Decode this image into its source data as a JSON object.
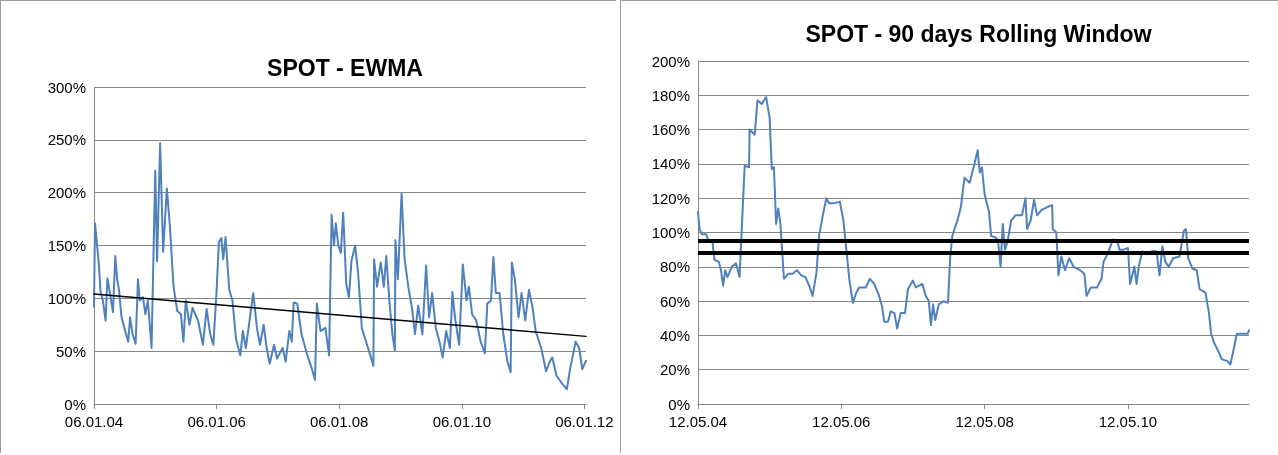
{
  "chart_data": [
    {
      "type": "line",
      "title": "SPOT - EWMA",
      "grid": "y",
      "xlim": [
        "2004-01-06",
        "2012-01-16"
      ],
      "xticks": [
        {
          "value": "2004-01-06",
          "label": "06.01.04"
        },
        {
          "value": "2006-01-06",
          "label": "06.01.06"
        },
        {
          "value": "2008-01-06",
          "label": "06.01.08"
        },
        {
          "value": "2010-01-06",
          "label": "06.01.10"
        },
        {
          "value": "2012-01-06",
          "label": "06.01.12"
        }
      ],
      "ylim": [
        0,
        300
      ],
      "yticks": [
        {
          "value": 0,
          "label": "0%"
        },
        {
          "value": 50,
          "label": "50%"
        },
        {
          "value": 100,
          "label": "100%"
        },
        {
          "value": 150,
          "label": "150%"
        },
        {
          "value": 200,
          "label": "200%"
        },
        {
          "value": 250,
          "label": "250%"
        },
        {
          "value": 300,
          "label": "300%"
        }
      ],
      "series": [
        {
          "color": "#4f81bd",
          "x": [
            "2004-01-06",
            "2004-01-12",
            "2004-02-03",
            "2004-02-14",
            "2004-02-28",
            "2004-03-15",
            "2004-03-26",
            "2004-04-10",
            "2004-04-28",
            "2004-05-12",
            "2004-05-23",
            "2004-06-03",
            "2004-06-18",
            "2004-07-10",
            "2004-07-28",
            "2004-08-08",
            "2004-08-23",
            "2004-09-10",
            "2004-09-24",
            "2004-10-05",
            "2004-10-24",
            "2004-11-07",
            "2004-11-22",
            "2004-12-14",
            "2004-12-25",
            "2005-01-05",
            "2005-01-16",
            "2005-02-03",
            "2005-02-21",
            "2005-03-15",
            "2005-04-02",
            "2005-04-24",
            "2005-05-16",
            "2005-06-07",
            "2005-06-22",
            "2005-07-06",
            "2005-07-28",
            "2005-08-15",
            "2005-09-17",
            "2005-10-16",
            "2005-11-07",
            "2005-11-29",
            "2005-12-17",
            "2006-01-05",
            "2006-01-19",
            "2006-02-03",
            "2006-02-14",
            "2006-02-28",
            "2006-03-22",
            "2006-04-10",
            "2006-05-01",
            "2006-05-27",
            "2006-06-11",
            "2006-06-29",
            "2006-07-21",
            "2006-08-12",
            "2006-09-03",
            "2006-09-21",
            "2006-10-13",
            "2006-10-31",
            "2006-11-18",
            "2006-12-14",
            "2007-01-01",
            "2007-02-03",
            "2007-02-21",
            "2007-03-15",
            "2007-03-30",
            "2007-04-10",
            "2007-05-01",
            "2007-05-27",
            "2007-06-25",
            "2007-07-28",
            "2007-08-15",
            "2007-08-26",
            "2007-09-17",
            "2007-10-16",
            "2007-11-07",
            "2007-11-22",
            "2007-12-06",
            "2007-12-17",
            "2008-01-01",
            "2008-01-16",
            "2008-01-30",
            "2008-02-17",
            "2008-03-04",
            "2008-03-19",
            "2008-04-10",
            "2008-04-28",
            "2008-05-20",
            "2008-06-14",
            "2008-07-10",
            "2008-07-28",
            "2008-08-01",
            "2008-08-19",
            "2008-09-10",
            "2008-09-28",
            "2008-10-13",
            "2008-10-31",
            "2008-11-18",
            "2008-12-03",
            "2008-12-06",
            "2008-12-21",
            "2009-01-12",
            "2009-01-30",
            "2009-02-21",
            "2009-03-15",
            "2009-04-02",
            "2009-04-21",
            "2009-05-16",
            "2009-06-07",
            "2009-06-25",
            "2009-07-13",
            "2009-08-04",
            "2009-08-26",
            "2009-09-14",
            "2009-10-05",
            "2009-10-27",
            "2009-11-11",
            "2009-11-26",
            "2009-12-21",
            "2010-01-12",
            "2010-02-03",
            "2010-02-17",
            "2010-03-08",
            "2010-04-02",
            "2010-04-28",
            "2010-05-23",
            "2010-06-07",
            "2010-06-29",
            "2010-07-13",
            "2010-07-28",
            "2010-08-19",
            "2010-09-10",
            "2010-10-05",
            "2010-10-24",
            "2010-10-31",
            "2010-11-18",
            "2010-12-10",
            "2010-12-28",
            "2011-01-19",
            "2011-02-10",
            "2011-03-04",
            "2011-03-22",
            "2011-04-24",
            "2011-05-23",
            "2011-06-14",
            "2011-06-29",
            "2011-07-24",
            "2011-08-23",
            "2011-09-24",
            "2011-10-13",
            "2011-11-15",
            "2011-12-06",
            "2011-12-25",
            "2012-01-16"
          ],
          "values": [
            92,
            171,
            134,
            106,
            98,
            79,
            119,
            105,
            87,
            140,
            118,
            108,
            82,
            69,
            59,
            82,
            66,
            57,
            118,
            98,
            101,
            85,
            98,
            53,
            137,
            221,
            135,
            247,
            144,
            204,
            169,
            111,
            88,
            85,
            59,
            98,
            75,
            91,
            79,
            56,
            90,
            66,
            56,
            105,
            153,
            157,
            137,
            158,
            108,
            98,
            62,
            46,
            69,
            53,
            79,
            105,
            72,
            56,
            75,
            53,
            38,
            56,
            43,
            53,
            40,
            69,
            59,
            96,
            95,
            66,
            49,
            33,
            23,
            95,
            69,
            72,
            46,
            179,
            150,
            171,
            150,
            143,
            181,
            114,
            101,
            135,
            150,
            124,
            72,
            59,
            46,
            36,
            137,
            111,
            134,
            111,
            140,
            98,
            66,
            51,
            155,
            118,
            199,
            137,
            111,
            91,
            66,
            93,
            66,
            131,
            82,
            105,
            72,
            59,
            44,
            69,
            53,
            106,
            82,
            56,
            132,
            98,
            111,
            85,
            79,
            59,
            48,
            95,
            98,
            139,
            105,
            105,
            66,
            40,
            30,
            134,
            118,
            82,
            105,
            79,
            108,
            91,
            69,
            53,
            31,
            40,
            44,
            27,
            20,
            14,
            33,
            59,
            53,
            33,
            41
          ]
        },
        {
          "color": "#000000",
          "x": [
            "2004-01-06",
            "2012-01-16"
          ],
          "values": [
            104,
            64
          ]
        }
      ]
    },
    {
      "type": "line",
      "title": "SPOT - 90 days Rolling Window",
      "grid": "y",
      "xlim": [
        "2004-05-12",
        "2012-01-19"
      ],
      "xticks": [
        {
          "value": "2004-05-12",
          "label": "12.05.04"
        },
        {
          "value": "2006-05-12",
          "label": "12.05.06"
        },
        {
          "value": "2008-05-12",
          "label": "12.05.08"
        },
        {
          "value": "2010-05-12",
          "label": "12.05.10"
        }
      ],
      "ylim": [
        0,
        200
      ],
      "yticks": [
        {
          "value": 0,
          "label": "0%"
        },
        {
          "value": 20,
          "label": "20%"
        },
        {
          "value": 40,
          "label": "40%"
        },
        {
          "value": 60,
          "label": "60%"
        },
        {
          "value": 80,
          "label": "80%"
        },
        {
          "value": 100,
          "label": "100%"
        },
        {
          "value": 120,
          "label": "120%"
        },
        {
          "value": 140,
          "label": "140%"
        },
        {
          "value": 160,
          "label": "160%"
        },
        {
          "value": 180,
          "label": "180%"
        },
        {
          "value": 200,
          "label": "200%"
        }
      ],
      "ref_lines": [
        {
          "axis": "y",
          "value": 95,
          "color": "#000000"
        },
        {
          "axis": "y",
          "value": 88,
          "color": "#000000"
        }
      ],
      "series": [
        {
          "color": "#4f81bd",
          "x": [
            "2004-05-12",
            "2004-05-20",
            "2004-05-31",
            "2004-06-22",
            "2004-07-03",
            "2004-07-24",
            "2004-08-04",
            "2004-08-26",
            "2004-09-06",
            "2004-09-17",
            "2004-09-28",
            "2004-10-09",
            "2004-10-31",
            "2004-11-22",
            "2004-12-10",
            "2004-12-25",
            "2005-01-05",
            "2005-01-27",
            "2005-01-30",
            "2005-02-25",
            "2005-03-11",
            "2005-04-02",
            "2005-04-24",
            "2005-05-12",
            "2005-05-23",
            "2005-06-03",
            "2005-06-14",
            "2005-06-25",
            "2005-07-06",
            "2005-07-24",
            "2005-08-15",
            "2005-09-06",
            "2005-09-28",
            "2005-10-20",
            "2005-11-11",
            "2005-12-03",
            "2005-12-17",
            "2006-01-05",
            "2006-01-19",
            "2006-02-07",
            "2006-02-25",
            "2006-03-11",
            "2006-04-02",
            "2006-05-05",
            "2006-05-23",
            "2006-06-07",
            "2006-06-22",
            "2006-07-10",
            "2006-07-28",
            "2006-08-12",
            "2006-09-14",
            "2006-10-05",
            "2006-10-27",
            "2006-11-18",
            "2006-12-06",
            "2006-12-17",
            "2007-01-05",
            "2007-01-19",
            "2007-02-07",
            "2007-02-21",
            "2007-03-11",
            "2007-04-02",
            "2007-04-17",
            "2007-05-12",
            "2007-05-27",
            "2007-06-29",
            "2007-07-17",
            "2007-08-01",
            "2007-08-12",
            "2007-08-23",
            "2007-09-03",
            "2007-09-21",
            "2007-10-16",
            "2007-11-07",
            "2007-11-18",
            "2007-11-29",
            "2007-12-10",
            "2007-12-25",
            "2008-01-12",
            "2008-01-30",
            "2008-02-25",
            "2008-03-19",
            "2008-04-06",
            "2008-04-17",
            "2008-04-28",
            "2008-05-12",
            "2008-06-03",
            "2008-06-14",
            "2008-07-10",
            "2008-07-21",
            "2008-08-01",
            "2008-08-12",
            "2008-08-23",
            "2008-09-06",
            "2008-09-24",
            "2008-10-16",
            "2008-11-18",
            "2008-12-06",
            "2008-12-14",
            "2009-01-01",
            "2009-01-19",
            "2009-02-03",
            "2009-02-25",
            "2009-03-30",
            "2009-04-21",
            "2009-04-24",
            "2009-05-12",
            "2009-05-23",
            "2009-06-07",
            "2009-06-25",
            "2009-07-17",
            "2009-08-08",
            "2009-09-10",
            "2009-10-02",
            "2009-10-13",
            "2009-11-04",
            "2009-12-06",
            "2009-12-28",
            "2010-01-08",
            "2010-01-30",
            "2010-02-25",
            "2010-03-19",
            "2010-03-30",
            "2010-04-21",
            "2010-05-12",
            "2010-05-23",
            "2010-06-14",
            "2010-06-25",
            "2010-07-06",
            "2010-07-24",
            "2010-08-19",
            "2010-09-10",
            "2010-10-05",
            "2010-10-20",
            "2010-11-04",
            "2010-11-18",
            "2010-12-06",
            "2010-12-28",
            "2011-01-30",
            "2011-02-21",
            "2011-03-04",
            "2011-03-15",
            "2011-04-06",
            "2011-04-28",
            "2011-05-12",
            "2011-06-11",
            "2011-06-29",
            "2011-07-10",
            "2011-07-24",
            "2011-08-15",
            "2011-09-03",
            "2011-10-02",
            "2011-10-16",
            "2011-11-04",
            "2011-11-18",
            "2011-12-17",
            "2012-01-12",
            "2012-01-19"
          ],
          "values": [
            112,
            102,
            99,
            99,
            96,
            95,
            84,
            83,
            78,
            69,
            78,
            74,
            80,
            82,
            74,
            112,
            139,
            138,
            160,
            157,
            177,
            175,
            179,
            167,
            137,
            138,
            105,
            114,
            105,
            73,
            76,
            76,
            78,
            75,
            74,
            68,
            63,
            76,
            98,
            110,
            120,
            117,
            117,
            118,
            107,
            90,
            73,
            59,
            65,
            68,
            68,
            73,
            70,
            64,
            57,
            48,
            48,
            54,
            53,
            44,
            53,
            53,
            67,
            72,
            68,
            70,
            63,
            60,
            46,
            58,
            49,
            58,
            60,
            59,
            85,
            98,
            102,
            107,
            115,
            132,
            129,
            139,
            148,
            135,
            138,
            122,
            112,
            98,
            97,
            93,
            80,
            105,
            90,
            95,
            107,
            110,
            110,
            120,
            102,
            107,
            119,
            110,
            113,
            115,
            116,
            102,
            100,
            75,
            86,
            78,
            85,
            80,
            78,
            76,
            63,
            68,
            68,
            73,
            83,
            88,
            96,
            95,
            90,
            90,
            91,
            70,
            80,
            70,
            80,
            89,
            88,
            89,
            89,
            75,
            92,
            83,
            80,
            85,
            86,
            101,
            102,
            85,
            79,
            78,
            67,
            65,
            53,
            41,
            36,
            31,
            26,
            25,
            23,
            33,
            41,
            41,
            41,
            43
          ]
        }
      ]
    }
  ]
}
